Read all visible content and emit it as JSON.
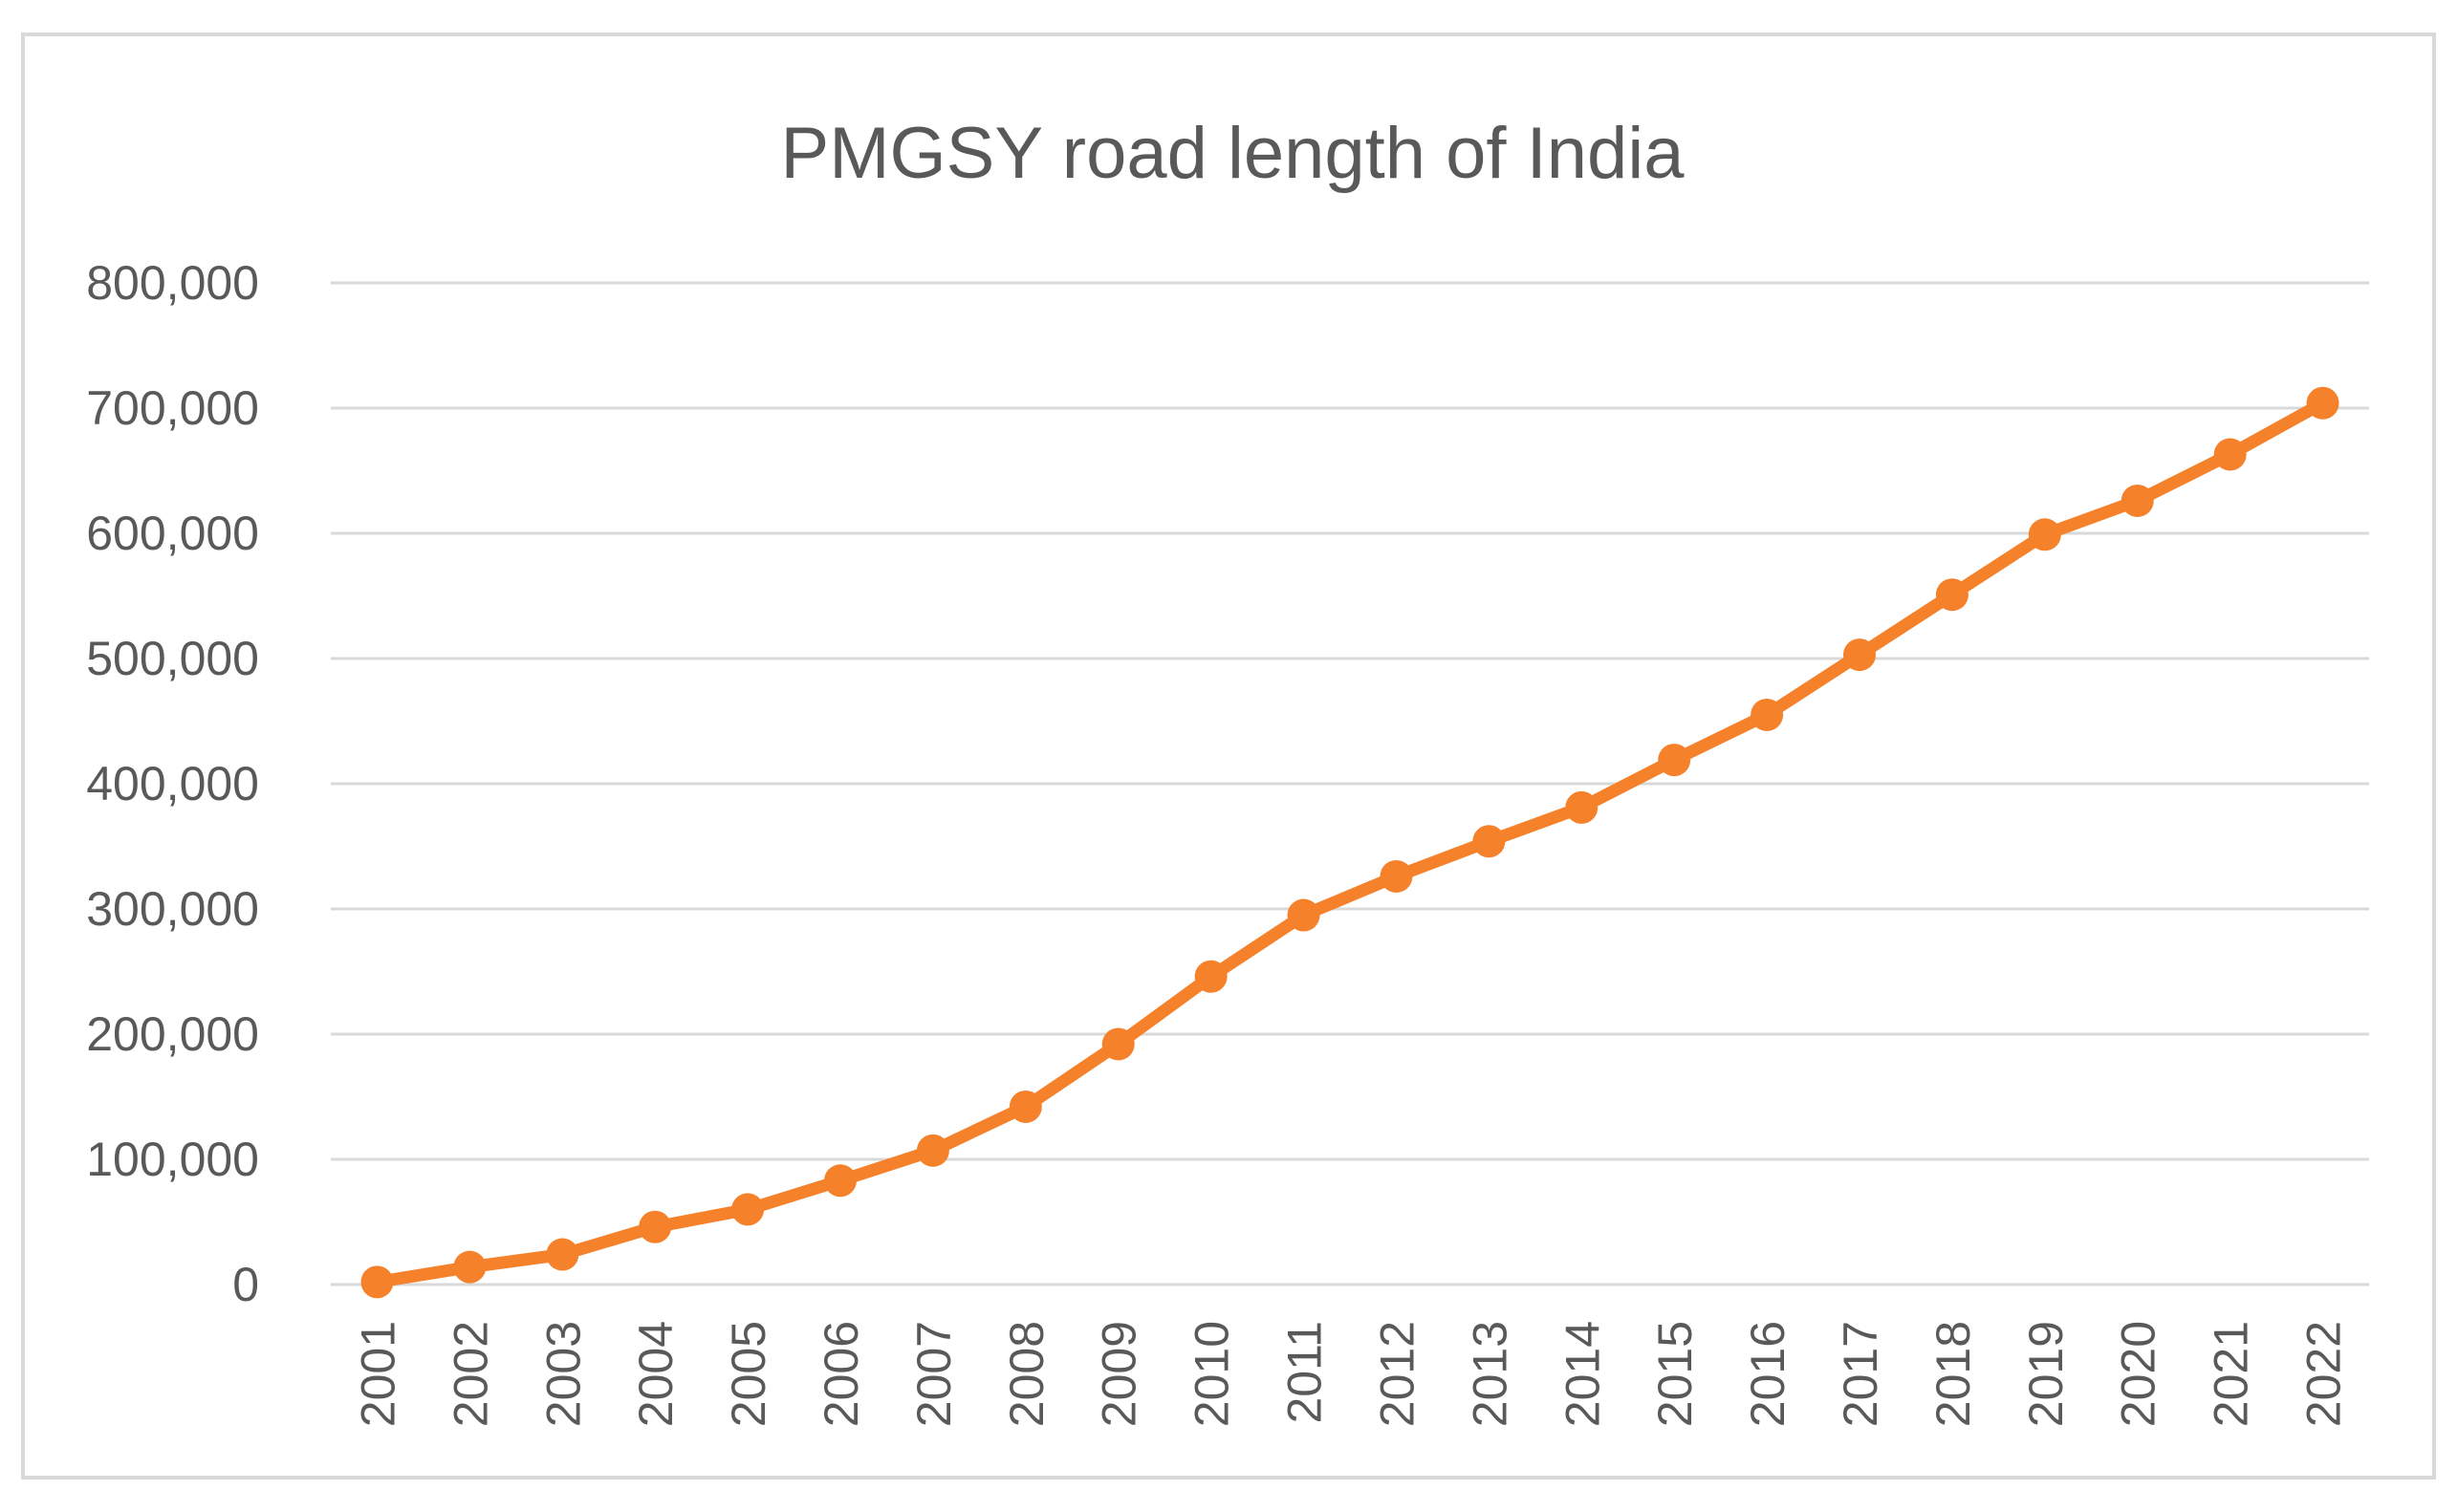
{
  "chart_data": {
    "type": "line",
    "title": "PMGSY road length of India",
    "xlabel": "",
    "ylabel": "",
    "ylim": [
      0,
      800000
    ],
    "yticks": [
      0,
      100000,
      200000,
      300000,
      400000,
      500000,
      600000,
      700000,
      800000
    ],
    "ytick_labels": [
      "0",
      "100,000",
      "200,000",
      "300,000",
      "400,000",
      "500,000",
      "600,000",
      "700,000",
      "800,000"
    ],
    "grid": true,
    "legend": "none",
    "categories": [
      "2001",
      "2002",
      "2003",
      "2004",
      "2005",
      "2006",
      "2007",
      "2008",
      "2009",
      "2010",
      "2011",
      "2012",
      "2013",
      "2014",
      "2015",
      "2016",
      "2017",
      "2018",
      "2019",
      "2020",
      "2021",
      "2022"
    ],
    "series": [
      {
        "name": "PMGSY road length",
        "color": "#f5812b",
        "values": [
          2000,
          14000,
          24000,
          46000,
          60000,
          83000,
          107000,
          142000,
          192000,
          246000,
          295000,
          326000,
          354000,
          381000,
          419000,
          455000,
          503000,
          551000,
          599000,
          626000,
          663000,
          704000
        ]
      }
    ]
  }
}
